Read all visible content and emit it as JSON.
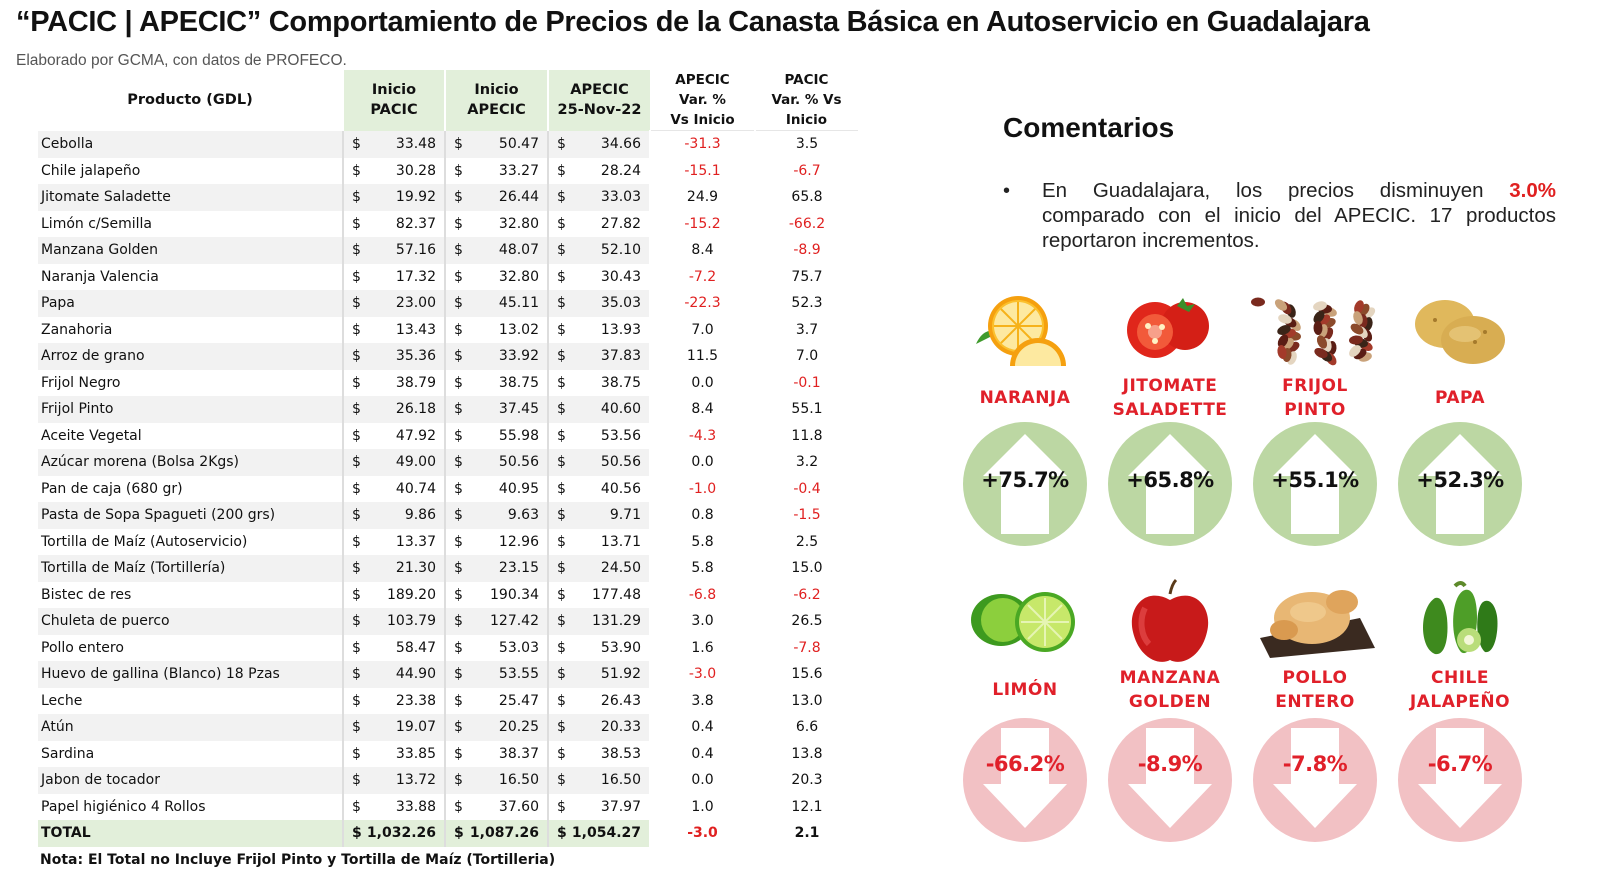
{
  "title": "“PACIC | APECIC” Comportamiento de Precios de la Canasta Básica en Autoservicio en Guadalajara",
  "subtitle": "Elaborado por GCMA, con datos de PROFECO.",
  "table": {
    "headers": {
      "product": "Producto (GDL)",
      "inicio_pacic": [
        "Inicio",
        "PACIC"
      ],
      "inicio_apecic": [
        "Inicio",
        "APECIC"
      ],
      "apecic_date": [
        "APECIC",
        "25-Nov-22"
      ],
      "apecic_var": [
        "APECIC",
        "Var. %",
        "Vs  Inicio"
      ],
      "pacic_var": [
        "PACIC",
        "Var. % Vs",
        "Inicio"
      ]
    },
    "currency_symbol": "$",
    "rows": [
      {
        "name": "Cebolla",
        "inicio_pacic": "33.48",
        "inicio_apecic": "50.47",
        "apecic": "34.66",
        "apecic_var": "-31.3",
        "pacic_var": "3.5"
      },
      {
        "name": "Chile jalapeño",
        "inicio_pacic": "30.28",
        "inicio_apecic": "33.27",
        "apecic": "28.24",
        "apecic_var": "-15.1",
        "pacic_var": "-6.7"
      },
      {
        "name": "Jitomate Saladette",
        "inicio_pacic": "19.92",
        "inicio_apecic": "26.44",
        "apecic": "33.03",
        "apecic_var": "24.9",
        "pacic_var": "65.8"
      },
      {
        "name": "Limón c/Semilla",
        "inicio_pacic": "82.37",
        "inicio_apecic": "32.80",
        "apecic": "27.82",
        "apecic_var": "-15.2",
        "pacic_var": "-66.2"
      },
      {
        "name": "Manzana Golden",
        "inicio_pacic": "57.16",
        "inicio_apecic": "48.07",
        "apecic": "52.10",
        "apecic_var": "8.4",
        "pacic_var": "-8.9"
      },
      {
        "name": "Naranja Valencia",
        "inicio_pacic": "17.32",
        "inicio_apecic": "32.80",
        "apecic": "30.43",
        "apecic_var": "-7.2",
        "pacic_var": "75.7"
      },
      {
        "name": "Papa",
        "inicio_pacic": "23.00",
        "inicio_apecic": "45.11",
        "apecic": "35.03",
        "apecic_var": "-22.3",
        "pacic_var": "52.3"
      },
      {
        "name": "Zanahoria",
        "inicio_pacic": "13.43",
        "inicio_apecic": "13.02",
        "apecic": "13.93",
        "apecic_var": "7.0",
        "pacic_var": "3.7"
      },
      {
        "name": "Arroz de grano",
        "inicio_pacic": "35.36",
        "inicio_apecic": "33.92",
        "apecic": "37.83",
        "apecic_var": "11.5",
        "pacic_var": "7.0"
      },
      {
        "name": "Frijol Negro",
        "inicio_pacic": "38.79",
        "inicio_apecic": "38.75",
        "apecic": "38.75",
        "apecic_var": "0.0",
        "pacic_var": "-0.1"
      },
      {
        "name": "Frijol Pinto",
        "inicio_pacic": "26.18",
        "inicio_apecic": "37.45",
        "apecic": "40.60",
        "apecic_var": "8.4",
        "pacic_var": "55.1"
      },
      {
        "name": "Aceite Vegetal",
        "inicio_pacic": "47.92",
        "inicio_apecic": "55.98",
        "apecic": "53.56",
        "apecic_var": "-4.3",
        "pacic_var": "11.8"
      },
      {
        "name": "Azúcar morena (Bolsa 2Kgs)",
        "inicio_pacic": "49.00",
        "inicio_apecic": "50.56",
        "apecic": "50.56",
        "apecic_var": "0.0",
        "pacic_var": "3.2"
      },
      {
        "name": "Pan de caja (680 gr)",
        "inicio_pacic": "40.74",
        "inicio_apecic": "40.95",
        "apecic": "40.56",
        "apecic_var": "-1.0",
        "pacic_var": "-0.4"
      },
      {
        "name": "Pasta de Sopa Spagueti (200 grs)",
        "inicio_pacic": "9.86",
        "inicio_apecic": "9.63",
        "apecic": "9.71",
        "apecic_var": "0.8",
        "pacic_var": "-1.5"
      },
      {
        "name": "Tortilla de Maíz (Autoservicio)",
        "inicio_pacic": "13.37",
        "inicio_apecic": "12.96",
        "apecic": "13.71",
        "apecic_var": "5.8",
        "pacic_var": "2.5"
      },
      {
        "name": "Tortilla de Maíz (Tortillería)",
        "inicio_pacic": "21.30",
        "inicio_apecic": "23.15",
        "apecic": "24.50",
        "apecic_var": "5.8",
        "pacic_var": "15.0"
      },
      {
        "name": "Bistec de res",
        "inicio_pacic": "189.20",
        "inicio_apecic": "190.34",
        "apecic": "177.48",
        "apecic_var": "-6.8",
        "pacic_var": "-6.2"
      },
      {
        "name": "Chuleta de puerco",
        "inicio_pacic": "103.79",
        "inicio_apecic": "127.42",
        "apecic": "131.29",
        "apecic_var": "3.0",
        "pacic_var": "26.5"
      },
      {
        "name": "Pollo entero",
        "inicio_pacic": "58.47",
        "inicio_apecic": "53.03",
        "apecic": "53.90",
        "apecic_var": "1.6",
        "pacic_var": "-7.8"
      },
      {
        "name": "Huevo de gallina (Blanco) 18 Pzas",
        "inicio_pacic": "44.90",
        "inicio_apecic": "53.55",
        "apecic": "51.92",
        "apecic_var": "-3.0",
        "pacic_var": "15.6"
      },
      {
        "name": "Leche",
        "inicio_pacic": "23.38",
        "inicio_apecic": "25.47",
        "apecic": "26.43",
        "apecic_var": "3.8",
        "pacic_var": "13.0"
      },
      {
        "name": "Atún",
        "inicio_pacic": "19.07",
        "inicio_apecic": "20.25",
        "apecic": "20.33",
        "apecic_var": "0.4",
        "pacic_var": "6.6"
      },
      {
        "name": "Sardina",
        "inicio_pacic": "33.85",
        "inicio_apecic": "38.37",
        "apecic": "38.53",
        "apecic_var": "0.4",
        "pacic_var": "13.8"
      },
      {
        "name": "Jabon de tocador",
        "inicio_pacic": "13.72",
        "inicio_apecic": "16.50",
        "apecic": "16.50",
        "apecic_var": "0.0",
        "pacic_var": "20.3"
      },
      {
        "name": "Papel higiénico 4 Rollos",
        "inicio_pacic": "33.88",
        "inicio_apecic": "37.60",
        "apecic": "37.97",
        "apecic_var": "1.0",
        "pacic_var": "12.1"
      }
    ],
    "total": {
      "name": "TOTAL",
      "inicio_pacic": "1,032.26",
      "inicio_apecic": "1,087.26",
      "apecic": "1,054.27",
      "apecic_var": "-3.0",
      "pacic_var": "2.1"
    }
  },
  "note": "Nota: El Total no Incluye Frijol Pinto y Tortilla de Maíz (Tortilleria)",
  "comments": {
    "title": "Comentarios",
    "bullet": "•",
    "text_before": "En Guadalajara, los precios disminuyen ",
    "highlight": "3.0%",
    "text_after": " comparado con el inicio del APECIC. 17 productos reportaron incrementos."
  },
  "increases": [
    {
      "label_line1": "NARANJA",
      "label_line2": "",
      "value": "+75.7%",
      "icon": "orange-icon"
    },
    {
      "label_line1": "JITOMATE",
      "label_line2": "SALADETTE",
      "value": "+65.8%",
      "icon": "tomato-icon"
    },
    {
      "label_line1": "FRIJOL",
      "label_line2": "PINTO",
      "value": "+55.1%",
      "icon": "beans-icon"
    },
    {
      "label_line1": "PAPA",
      "label_line2": "",
      "value": "+52.3%",
      "icon": "potato-icon"
    }
  ],
  "decreases": [
    {
      "label_line1": "LIMÓN",
      "label_line2": "",
      "value": "-66.2%",
      "icon": "lime-icon"
    },
    {
      "label_line1": "MANZANA",
      "label_line2": "GOLDEN",
      "value": "-8.9%",
      "icon": "apple-icon"
    },
    {
      "label_line1": "POLLO",
      "label_line2": "ENTERO",
      "value": "-7.8%",
      "icon": "chicken-icon"
    },
    {
      "label_line1": "CHILE",
      "label_line2": "JALAPEÑO",
      "value": "-6.7%",
      "icon": "jalapeno-icon"
    }
  ],
  "colors": {
    "header_green": "#e2efda",
    "negative_red": "#e02020",
    "up_circle": "#bcd7a3",
    "down_circle": "#f2c1c4"
  }
}
